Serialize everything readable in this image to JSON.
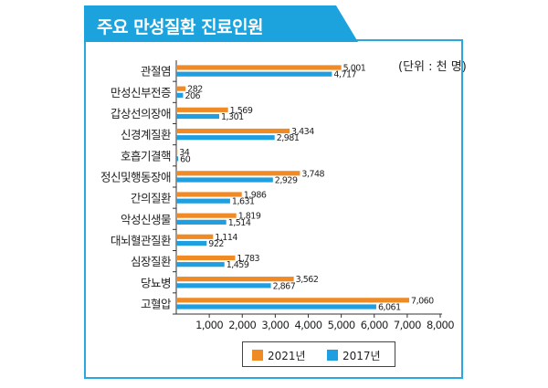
{
  "title": "주요 만성질환 진료인원",
  "unit_label": "(단위 : 천 명)",
  "colors": {
    "accent": "#1ca3dd",
    "frame": "#2aa7df",
    "series_2021": "#f08a24",
    "series_2017": "#1f9ee0"
  },
  "chart_data": {
    "type": "bar",
    "orientation": "horizontal",
    "categories": [
      "관절염",
      "만성신부전증",
      "갑상선의장애",
      "신경계질환",
      "호흡기결핵",
      "정신및행동장애",
      "간의질환",
      "악성신생물",
      "대뇌혈관질환",
      "심장질환",
      "당뇨병",
      "고혈압"
    ],
    "series": [
      {
        "name": "2021년",
        "color": "#f08a24",
        "values": [
          5001,
          282,
          1569,
          3434,
          34,
          3748,
          1986,
          1819,
          1114,
          1783,
          3562,
          7060
        ],
        "labels": [
          "5,001",
          "282",
          "1,569",
          "3,434",
          "34",
          "3,748",
          "1,986",
          "1,819",
          "1,114",
          "1,783",
          "3,562",
          "7,060"
        ]
      },
      {
        "name": "2017년",
        "color": "#1f9ee0",
        "values": [
          4717,
          206,
          1301,
          2981,
          60,
          2929,
          1631,
          1514,
          922,
          1459,
          2867,
          6061
        ],
        "labels": [
          "4,717",
          "206",
          "1,301",
          "2,981",
          "60",
          "2,929",
          "1,631",
          "1,514",
          "922",
          "1,459",
          "2,867",
          "6,061"
        ]
      }
    ],
    "xlim": [
      0,
      8000
    ],
    "xticks": [
      1000,
      2000,
      3000,
      4000,
      5000,
      6000,
      7000,
      8000
    ],
    "xtick_labels": [
      "1,000",
      "2,000",
      "3,000",
      "4,000",
      "5,000",
      "6,000",
      "7,000",
      "8,000"
    ],
    "grid": false,
    "legend_position": "bottom-center"
  }
}
